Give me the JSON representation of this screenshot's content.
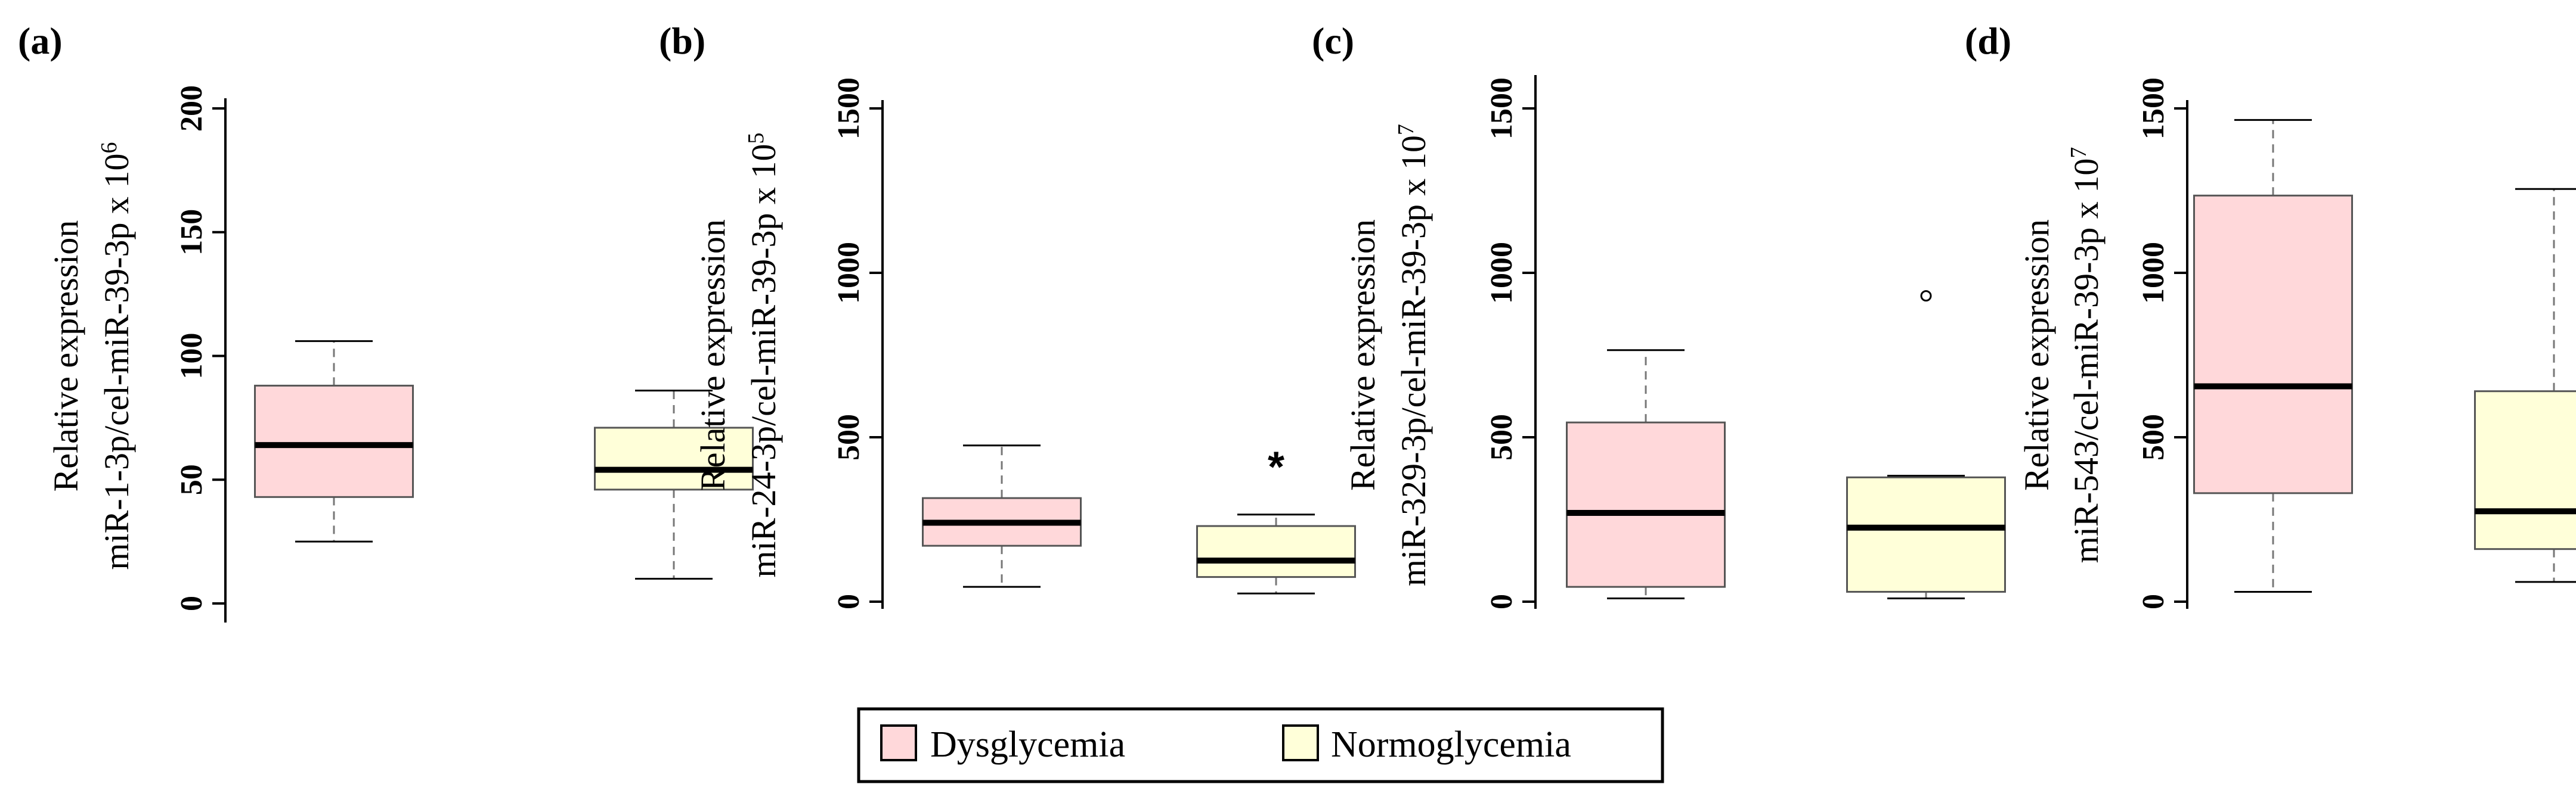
{
  "colors": {
    "dysglycemia": "#ffd8da",
    "normoglycemia": "#ffffd9",
    "line": "#000000",
    "whisker": "#777777"
  },
  "legend": {
    "items": [
      "Dysglycemia",
      "Normoglycemia"
    ]
  },
  "chart_data": [
    {
      "type": "boxplot",
      "panel": "(a)",
      "ylabel_line1": "Relative expression",
      "ylabel_line2": "miR-1-3p/cel-miR-39-3p x 10",
      "ylabel_exp": "6",
      "ylim": [
        0,
        200
      ],
      "yticks": [
        "0",
        "50",
        "100",
        "150",
        "200"
      ],
      "tick_values": [
        0,
        50,
        100,
        150,
        200
      ],
      "groups": [
        {
          "name": "Dysglycemia",
          "min": 25,
          "q1": 43,
          "median": 64,
          "q3": 88,
          "max": 106,
          "outliers": []
        },
        {
          "name": "Normoglycemia",
          "min": 10,
          "q1": 46,
          "median": 54,
          "q3": 71,
          "max": 86,
          "outliers": []
        }
      ],
      "annotation": ""
    },
    {
      "type": "boxplot",
      "panel": "(b)",
      "ylabel_line1": "Relative expression",
      "ylabel_line2": "miR-24-3p/cel-miR-39-3p x 10",
      "ylabel_exp": "5",
      "ylim": [
        0,
        1500
      ],
      "yticks": [
        "0",
        "500",
        "1000",
        "1500"
      ],
      "tick_values": [
        0,
        500,
        1000,
        1500
      ],
      "groups": [
        {
          "name": "Dysglycemia",
          "min": 45,
          "q1": 170,
          "median": 240,
          "q3": 315,
          "max": 475,
          "outliers": []
        },
        {
          "name": "Normoglycemia",
          "min": 25,
          "q1": 75,
          "median": 125,
          "q3": 230,
          "max": 265,
          "outliers": []
        }
      ],
      "annotation": "*"
    },
    {
      "type": "boxplot",
      "panel": "(c)",
      "ylabel_line1": "Relative expression",
      "ylabel_line2": "miR-329-3p/cel-miR-39-3p x 10",
      "ylabel_exp": "7",
      "ylim": [
        0,
        1500
      ],
      "yticks": [
        "0",
        "500",
        "1000",
        "1500"
      ],
      "tick_values": [
        0,
        500,
        1000,
        1500
      ],
      "groups": [
        {
          "name": "Dysglycemia",
          "min": 10,
          "q1": 45,
          "median": 270,
          "q3": 545,
          "max": 765,
          "outliers": []
        },
        {
          "name": "Normoglycemia",
          "min": 10,
          "q1": 30,
          "median": 225,
          "q3": 378,
          "max": 383,
          "outliers": [
            930
          ]
        }
      ],
      "annotation": ""
    },
    {
      "type": "boxplot",
      "panel": "(d)",
      "ylabel_line1": "Relative expression",
      "ylabel_line2": "miR-543/cel-miR-39-3p x 10",
      "ylabel_exp": "7",
      "ylim": [
        0,
        1500
      ],
      "yticks": [
        "0",
        "500",
        "1000",
        "1500"
      ],
      "tick_values": [
        0,
        500,
        1000,
        1500
      ],
      "groups": [
        {
          "name": "Dysglycemia",
          "min": 30,
          "q1": 330,
          "median": 655,
          "q3": 1235,
          "max": 1465,
          "outliers": []
        },
        {
          "name": "Normoglycemia",
          "min": 60,
          "q1": 160,
          "median": 275,
          "q3": 640,
          "max": 1255,
          "outliers": []
        }
      ],
      "annotation": ""
    }
  ]
}
